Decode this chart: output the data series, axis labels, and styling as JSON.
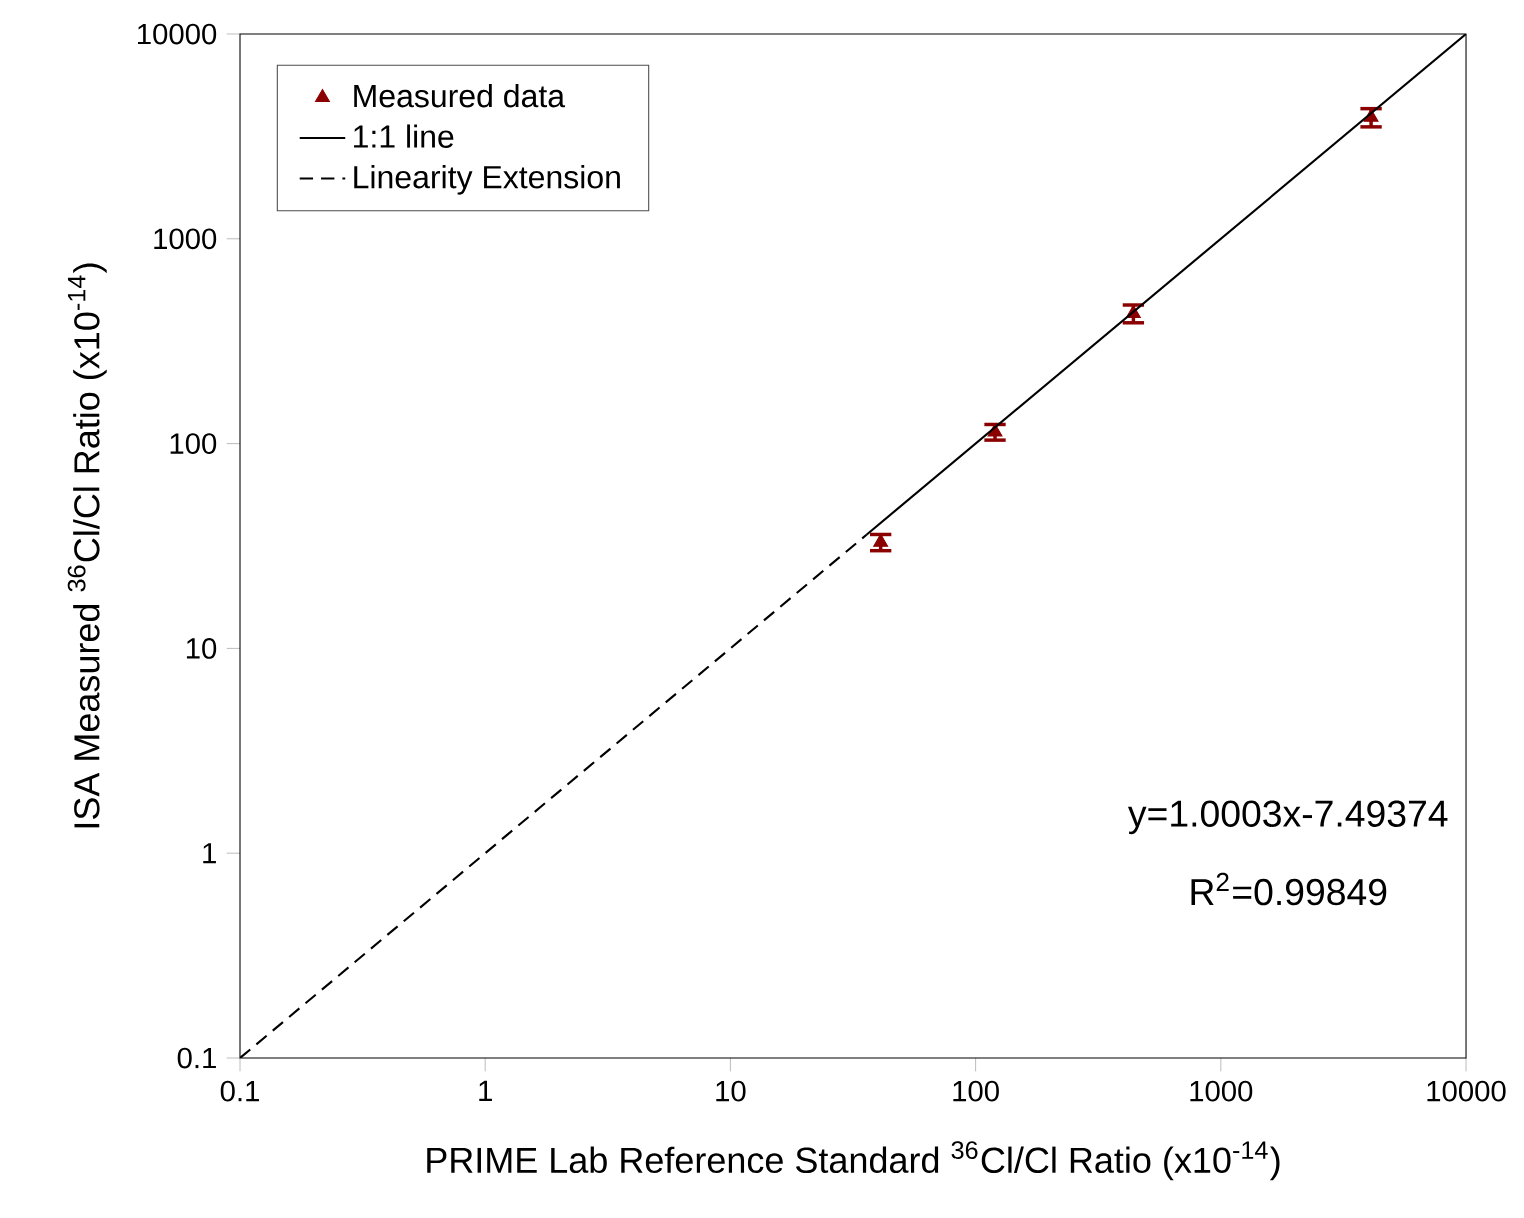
{
  "chart_data": {
    "type": "scatter",
    "xlabel": "PRIME Lab Reference Standard $^{36}$Cl/Cl Ratio (x10$^{-14}$)",
    "ylabel": "ISA Measured $^{36}$Cl/Cl Ratio (x10$^{-14}$)",
    "log": "xy",
    "xlim": [
      0.1,
      10000
    ],
    "ylim": [
      0.1,
      10000
    ],
    "xticks": [
      0.1,
      1,
      10,
      100,
      1000,
      10000
    ],
    "yticks": [
      0.1,
      1,
      10,
      100,
      1000,
      10000
    ],
    "legend": "top left",
    "grid": false,
    "series": [
      {
        "name": "Measured data",
        "marker": "triangle",
        "color": "#8b0000",
        "x": [
          41,
          120,
          440,
          4100
        ],
        "values": [
          33,
          114,
          432,
          3920
        ],
        "errors": [
          3,
          10,
          43,
          400
        ]
      },
      {
        "name": "1:1 line",
        "type": "line",
        "line_style": "solid",
        "color": "#000000",
        "x": [
          36,
          10000
        ],
        "values": [
          36,
          10000
        ]
      },
      {
        "name": "Linearity Extension",
        "type": "line",
        "line_style": "dashed",
        "color": "#000000",
        "x": [
          0.1,
          36
        ],
        "values": [
          0.1,
          36
        ]
      }
    ],
    "annotations": [
      "y=1.0003x-7.49374",
      "R$^{2}$=0.99849"
    ]
  }
}
